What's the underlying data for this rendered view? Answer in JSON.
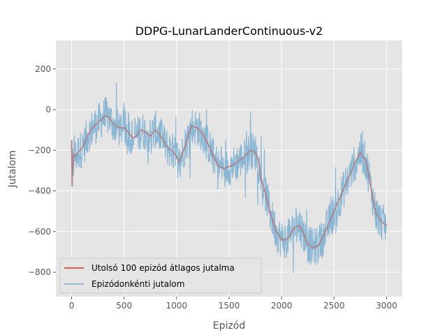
{
  "chart_data": {
    "type": "line",
    "title": "DDPG-LunarLanderContinuous-v2",
    "xlabel": "Epizód",
    "ylabel": "Jutalom",
    "xlim": [
      -150,
      3150
    ],
    "ylim": [
      -920,
      340
    ],
    "x_ticks": [
      0,
      500,
      1000,
      1500,
      2000,
      2500,
      3000
    ],
    "y_ticks": [
      -800,
      -600,
      -400,
      -200,
      0,
      200
    ],
    "x_tick_labels": [
      "0",
      "500",
      "1000",
      "1500",
      "2000",
      "2500",
      "3000"
    ],
    "y_tick_labels": [
      "−800",
      "−600",
      "−400",
      "−200",
      "0",
      "200"
    ],
    "grid": true,
    "legend_position": "lower-left",
    "series": [
      {
        "name": "Utolsó 100 epizód átlagos jutalma",
        "color": "#E24A33",
        "x": [
          0,
          5,
          10,
          20,
          40,
          60,
          80,
          100,
          130,
          160,
          200,
          240,
          280,
          320,
          360,
          380,
          420,
          460,
          500,
          540,
          580,
          620,
          660,
          700,
          750,
          800,
          850,
          900,
          950,
          1000,
          1020,
          1060,
          1100,
          1140,
          1200,
          1250,
          1300,
          1350,
          1400,
          1450,
          1500,
          1550,
          1600,
          1650,
          1700,
          1750,
          1780,
          1800,
          1850,
          1900,
          1950,
          2000,
          2040,
          2080,
          2120,
          2170,
          2200,
          2250,
          2300,
          2350,
          2400,
          2450,
          2500,
          2550,
          2600,
          2650,
          2700,
          2750,
          2800,
          2830,
          2860,
          2900,
          2950,
          3000
        ],
        "y": [
          -150,
          -380,
          -300,
          -220,
          -230,
          -210,
          -200,
          -190,
          -160,
          -120,
          -90,
          -70,
          -50,
          -30,
          -40,
          -60,
          -80,
          -90,
          -90,
          -110,
          -140,
          -130,
          -100,
          -110,
          -130,
          -100,
          -130,
          -180,
          -200,
          -230,
          -260,
          -210,
          -150,
          -80,
          -90,
          -120,
          -170,
          -230,
          -280,
          -290,
          -280,
          -270,
          -250,
          -230,
          -200,
          -210,
          -250,
          -330,
          -420,
          -520,
          -600,
          -640,
          -640,
          -620,
          -580,
          -570,
          -600,
          -660,
          -680,
          -670,
          -620,
          -560,
          -500,
          -440,
          -380,
          -320,
          -260,
          -210,
          -250,
          -320,
          -410,
          -510,
          -550,
          -570
        ]
      },
      {
        "name": "Epizódonkénti jutalom",
        "color": "#81B1D2",
        "x": [
          0,
          500,
          1000,
          1500,
          2000,
          2500,
          3000
        ],
        "y": [
          -210,
          -90,
          -190,
          -270,
          -600,
          -520,
          -570
        ]
      }
    ]
  }
}
